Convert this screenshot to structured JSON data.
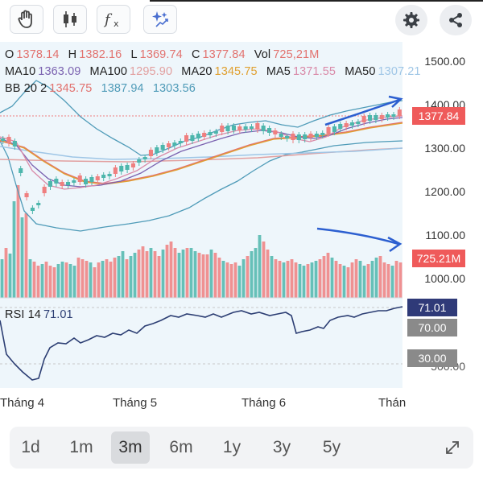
{
  "toolbar": {
    "tools": [
      {
        "name": "drawing-hand-icon"
      },
      {
        "name": "candlestick-icon"
      },
      {
        "name": "function-icon"
      },
      {
        "name": "magic-sparkle-icon"
      }
    ],
    "actions": [
      {
        "name": "settings-gear-icon"
      },
      {
        "name": "share-icon"
      }
    ]
  },
  "legend": {
    "ohlc": {
      "o_label": "O",
      "o": "1378.14",
      "h_label": "H",
      "h": "1382.16",
      "l_label": "L",
      "l": "1369.74",
      "c_label": "C",
      "c": "1377.84",
      "vol_label": "Vol",
      "vol": "725,21M"
    },
    "ma": [
      {
        "label": "MA10",
        "value": "1363.09",
        "color": "#7b62b0"
      },
      {
        "label": "MA100",
        "value": "1295.90",
        "color": "#e2a0a0"
      },
      {
        "label": "MA20",
        "value": "1345.75",
        "color": "#e0a030"
      },
      {
        "label": "MA5",
        "value": "1371.55",
        "color": "#d98aa8"
      },
      {
        "label": "MA50",
        "value": "1307.21",
        "color": "#9fc6e6"
      }
    ],
    "bb": {
      "label": "BB 20 2",
      "mid": "1345.75",
      "upper": "1387.94",
      "lower": "1303.56",
      "mid_color": "#e2726f",
      "band_color": "#4f9bb8"
    }
  },
  "price_axis": [
    "1500.00",
    "1400.00",
    "1300.00",
    "1200.00",
    "1100.00",
    "1000.00"
  ],
  "price_tag": "1377.84",
  "volume_tag": "725.21M",
  "rsi": {
    "label": "RSI 14",
    "value": "71.01",
    "overbought": "70.00",
    "oversold": "30.00",
    "axis_hidden": "500.00"
  },
  "months": [
    "Tháng 4",
    "Tháng 5",
    "Tháng 6",
    "Thán"
  ],
  "timeframes": [
    {
      "label": "1d",
      "active": false
    },
    {
      "label": "1m",
      "active": false
    },
    {
      "label": "3m",
      "active": true
    },
    {
      "label": "6m",
      "active": false
    },
    {
      "label": "1y",
      "active": false
    },
    {
      "label": "3y",
      "active": false
    },
    {
      "label": "5y",
      "active": false
    }
  ],
  "colors": {
    "up": "#4db6ac",
    "down": "#ef7f7f",
    "price_tag": "#ef5a5a",
    "rsi_line": "#2c3e73",
    "rsi_tag": "#2f3a78",
    "level_tag": "#8a8a8a",
    "annotation": "#2c5fd0"
  }
}
